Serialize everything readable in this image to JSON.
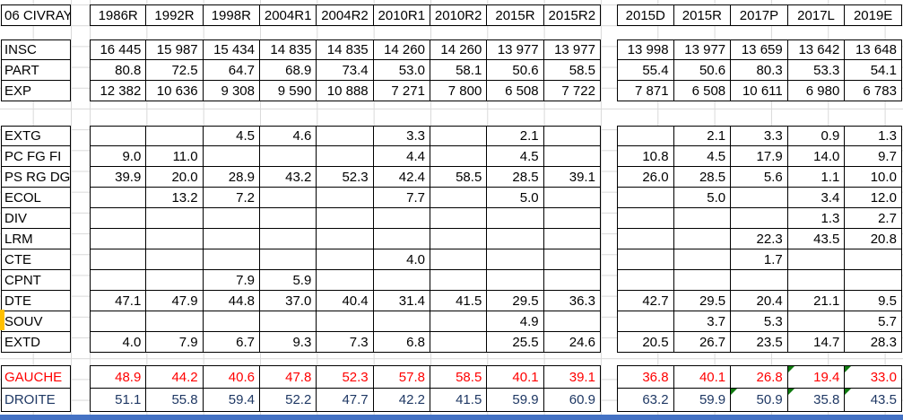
{
  "title": "06 CIVRAY",
  "columns_left": [
    "1986R",
    "1992R",
    "1998R",
    "2004R1",
    "2004R2",
    "2010R1",
    "2010R2",
    "2015R",
    "2015R2"
  ],
  "columns_right": [
    "2015D",
    "2015R",
    "2017P",
    "2017L",
    "2019E"
  ],
  "stats_rows": [
    {
      "label": "INSC",
      "left": [
        "16 445",
        "15 987",
        "15 434",
        "14 835",
        "14 835",
        "14 260",
        "14 260",
        "13 977",
        "13 977"
      ],
      "right": [
        "13 998",
        "13 977",
        "13 659",
        "13 642",
        "13 648"
      ]
    },
    {
      "label": "PART",
      "left": [
        "80.8",
        "72.5",
        "64.7",
        "68.9",
        "73.4",
        "53.0",
        "58.1",
        "50.6",
        "58.5"
      ],
      "right": [
        "55.4",
        "50.6",
        "80.3",
        "53.3",
        "54.1"
      ]
    },
    {
      "label": "EXP",
      "left": [
        "12 382",
        "10 636",
        "9 308",
        "9 590",
        "10 888",
        "7 271",
        "7 800",
        "6 508",
        "7 722"
      ],
      "right": [
        "7 871",
        "6 508",
        "10 611",
        "6 980",
        "6 783"
      ]
    }
  ],
  "party_rows": [
    {
      "label": "EXTG",
      "left": [
        "",
        "",
        "4.5",
        "4.6",
        "",
        "3.3",
        "",
        "2.1",
        ""
      ],
      "right": [
        "",
        "2.1",
        "3.3",
        "0.9",
        "1.3"
      ]
    },
    {
      "label": "PC FG FI",
      "left": [
        "9.0",
        "11.0",
        "",
        "",
        "",
        "4.4",
        "",
        "4.5",
        ""
      ],
      "right": [
        "10.8",
        "4.5",
        "17.9",
        "14.0",
        "9.7"
      ]
    },
    {
      "label": "PS RG DG",
      "left": [
        "39.9",
        "20.0",
        "28.9",
        "43.2",
        "52.3",
        "42.4",
        "58.5",
        "28.5",
        "39.1"
      ],
      "right": [
        "26.0",
        "28.5",
        "5.6",
        "1.1",
        "10.0"
      ]
    },
    {
      "label": "ECOL",
      "left": [
        "",
        "13.2",
        "7.2",
        "",
        "",
        "7.7",
        "",
        "5.0",
        ""
      ],
      "right": [
        "",
        "5.0",
        "",
        "3.4",
        "12.0"
      ]
    },
    {
      "label": "DIV",
      "left": [
        "",
        "",
        "",
        "",
        "",
        "",
        "",
        "",
        ""
      ],
      "right": [
        "",
        "",
        "",
        "1.3",
        "2.7"
      ]
    },
    {
      "label": "LRM",
      "left": [
        "",
        "",
        "",
        "",
        "",
        "",
        "",
        "",
        ""
      ],
      "right": [
        "",
        "",
        "22.3",
        "43.5",
        "20.8"
      ]
    },
    {
      "label": "CTE",
      "left": [
        "",
        "",
        "",
        "",
        "",
        "4.0",
        "",
        "",
        ""
      ],
      "right": [
        "",
        "",
        "1.7",
        "",
        ""
      ]
    },
    {
      "label": "CPNT",
      "left": [
        "",
        "",
        "7.9",
        "5.9",
        "",
        "",
        "",
        "",
        ""
      ],
      "right": [
        "",
        "",
        "",
        "",
        ""
      ]
    },
    {
      "label": "DTE",
      "left": [
        "47.1",
        "47.9",
        "44.8",
        "37.0",
        "40.4",
        "31.4",
        "41.5",
        "29.5",
        "36.3"
      ],
      "right": [
        "42.7",
        "29.5",
        "20.4",
        "21.1",
        "9.5"
      ]
    },
    {
      "label": "SOUV",
      "left": [
        "",
        "",
        "",
        "",
        "",
        "",
        "",
        "4.9",
        ""
      ],
      "right": [
        "",
        "3.7",
        "5.3",
        "",
        "5.7"
      ]
    },
    {
      "label": "EXTD",
      "left": [
        "4.0",
        "7.9",
        "6.7",
        "9.3",
        "7.3",
        "6.8",
        "",
        "25.5",
        "24.6"
      ],
      "right": [
        "20.5",
        "26.7",
        "23.5",
        "14.7",
        "28.3"
      ]
    }
  ],
  "summary_rows": [
    {
      "label": "GAUCHE",
      "color_class": "red",
      "left": [
        "48.9",
        "44.2",
        "40.6",
        "47.8",
        "52.3",
        "57.8",
        "58.5",
        "40.1",
        "39.1"
      ],
      "right": [
        "36.8",
        "40.1",
        "26.8",
        "19.4",
        "33.0"
      ],
      "flags_right": [
        false,
        false,
        false,
        true,
        true
      ]
    },
    {
      "label": "DROITE",
      "color_class": "navy",
      "left": [
        "51.1",
        "55.8",
        "59.4",
        "52.2",
        "47.7",
        "42.2",
        "41.5",
        "59.9",
        "60.9"
      ],
      "right": [
        "63.2",
        "59.9",
        "50.9",
        "35.8",
        "43.5"
      ],
      "flags_right": [
        false,
        false,
        true,
        true,
        true
      ]
    }
  ],
  "colors": {
    "gauche_text": "#ff0000",
    "droite_text": "#1f3864",
    "error_flag": "#0f7a0f",
    "highlight_marker": "#ffc000",
    "bottom_bar": "#4472c4",
    "gridline": "#d9d9d9",
    "cell_border": "#000000"
  }
}
